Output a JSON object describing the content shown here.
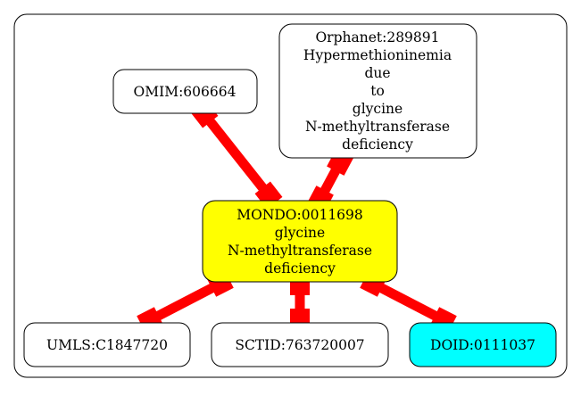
{
  "colors": {
    "background": "#ffffff",
    "cluster_border": "#000000",
    "node_border": "#000000",
    "node_default_fill": "#ffffff",
    "focus_fill": "#ffff00",
    "doid_fill": "#00ffff",
    "edge_color": "#ff0000"
  },
  "nodes": {
    "omim": {
      "lines": [
        "OMIM:606664"
      ],
      "fill": "#ffffff"
    },
    "orphanet": {
      "lines": [
        "Orphanet:289891",
        "Hypermethioninemia",
        "due",
        "to",
        "glycine",
        "N-methyltransferase",
        "deficiency"
      ],
      "fill": "#ffffff"
    },
    "mondo": {
      "lines": [
        "MONDO:0011698",
        "glycine",
        "N-methyltransferase",
        "deficiency"
      ],
      "fill": "#ffff00"
    },
    "umls": {
      "lines": [
        "UMLS:C1847720"
      ],
      "fill": "#ffffff"
    },
    "sctid": {
      "lines": [
        "SCTID:763720007"
      ],
      "fill": "#ffffff"
    },
    "doid": {
      "lines": [
        "DOID:0111037"
      ],
      "fill": "#00ffff"
    }
  },
  "edges": [
    {
      "from": "omim",
      "to": "mondo",
      "label": ""
    },
    {
      "from": "orphanet",
      "to": "mondo",
      "label": ""
    },
    {
      "from": "mondo",
      "to": "umls",
      "label": ""
    },
    {
      "from": "mondo",
      "to": "sctid",
      "label": ""
    },
    {
      "from": "mondo",
      "to": "doid",
      "label": ""
    }
  ]
}
